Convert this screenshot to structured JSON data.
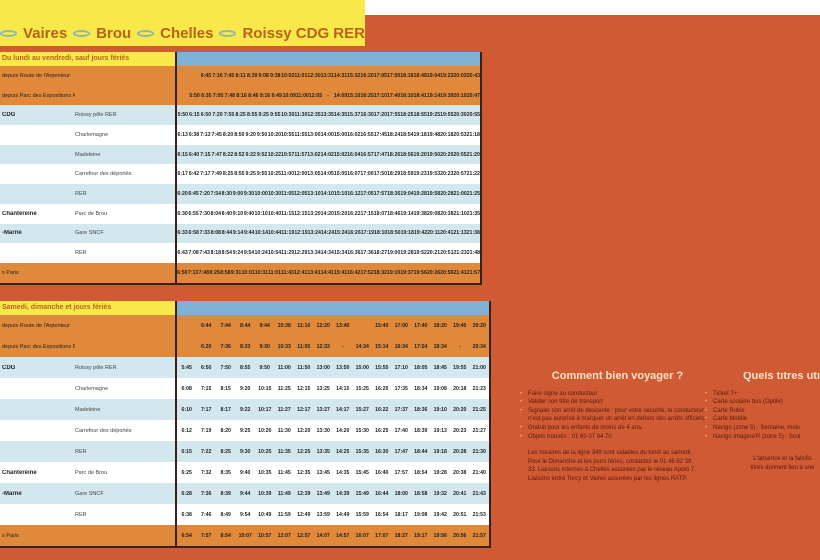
{
  "colors": {
    "background": "#cf5a33",
    "banner": "#f8e84a",
    "orange_row": "#e0893b",
    "blue_row": "#d3e7ee",
    "header_band": "#7fb0d6"
  },
  "title": {
    "stops": [
      "Vaires",
      "Brou",
      "Chelles",
      "Roissy CDG RER"
    ],
    "separator_icon": "double-arrow-icon"
  },
  "weekday": {
    "header": "Du lundi au vendredi, sauf jours fériés",
    "rows": [
      {
        "c1": "depuis Route de l'Arpenteur",
        "c2": "",
        "style": "o",
        "times": [
          "",
          "",
          "6:45",
          "7:16",
          "7:45",
          "8:11",
          "8:39",
          "9:08",
          "9:38",
          "10:02",
          "11:01",
          "12:30",
          "13:31",
          "14:31",
          "15:32",
          "16:20",
          "17:05",
          "17:50",
          "18:18",
          "18:48",
          "19:04",
          "19:23",
          "20:03",
          "20:43"
        ]
      },
      {
        "c1": "depuis Parc des Expositions RER",
        "c2": "",
        "style": "o",
        "times": [
          "",
          "5:50",
          "6:35",
          "7:05",
          "7:48",
          "8:16",
          "8:46",
          "9:16",
          "9:49",
          "10:09",
          "11:00",
          "12:05",
          "-",
          "14:09",
          "15:10",
          "16:25",
          "17:10",
          "17:40",
          "18:10",
          "18:41",
          "19:14",
          "19:39",
          "20:10",
          "20:47"
        ]
      },
      {
        "c1": "CDG",
        "bold": true,
        "c2": "Roissy pôle RER",
        "style": "b",
        "times": [
          "5:50",
          "6:15",
          "6:50",
          "7:20",
          "7:55",
          "8:25",
          "8:55",
          "9:25",
          "9:55",
          "10:30",
          "11:30",
          "12:35",
          "13:35",
          "14:35",
          "15:37",
          "16:30",
          "17:20",
          "17:55",
          "18:25",
          "18:55",
          "19:25",
          "19:55",
          "20:30",
          "20:55"
        ]
      },
      {
        "c1": "",
        "c2": "Charlemagne",
        "style": "w",
        "times": [
          "6:13",
          "6:38",
          "7:13",
          "7:45",
          "8:20",
          "8:50",
          "9:20",
          "9:50",
          "10:20",
          "10:55",
          "11:55",
          "13:00",
          "14:00",
          "15:00",
          "16:02",
          "16:55",
          "17:45",
          "18:24",
          "18:54",
          "19:18",
          "19:48",
          "20:18",
          "20:53",
          "21:18"
        ]
      },
      {
        "c1": "",
        "c2": "Madeleine",
        "style": "b",
        "times": [
          "6:15",
          "6:40",
          "7:15",
          "7:47",
          "8:22",
          "8:52",
          "9:22",
          "9:52",
          "10:22",
          "10:57",
          "11:57",
          "13:02",
          "14:02",
          "15:02",
          "16:04",
          "16:57",
          "17:47",
          "18:26",
          "18:56",
          "19:20",
          "19:50",
          "20:20",
          "20:55",
          "21:20"
        ]
      },
      {
        "c1": "",
        "c2": "Carrefour des déportés",
        "style": "w",
        "times": [
          "6:17",
          "6:42",
          "7:17",
          "7:49",
          "8:25",
          "8:55",
          "9:25",
          "9:55",
          "10:25",
          "11:00",
          "12:00",
          "13:05",
          "14:05",
          "15:05",
          "16:07",
          "17:00",
          "17:50",
          "18:29",
          "18:59",
          "19:23",
          "19:53",
          "20:23",
          "20:57",
          "21:22"
        ]
      },
      {
        "c1": "",
        "c2": "RER",
        "style": "b",
        "times": [
          "6:20",
          "6:45",
          "7:20",
          "7:54",
          "8:30",
          "9:00",
          "9:30",
          "10:00",
          "10:30",
          "11:05",
          "12:05",
          "13:10",
          "14:10",
          "15:10",
          "16:12",
          "17:05",
          "17:57",
          "18:36",
          "19:04",
          "19:28",
          "19:58",
          "20:28",
          "21:00",
          "21:25"
        ]
      },
      {
        "c1": "Chantereine",
        "bold": true,
        "c2": "Parc de Brou",
        "style": "w",
        "times": [
          "6:30",
          "6:55",
          "7:30",
          "8:04",
          "8:40",
          "9:10",
          "9:40",
          "10:10",
          "10:40",
          "11:15",
          "12:15",
          "13:20",
          "14:20",
          "15:20",
          "16:22",
          "17:15",
          "18:07",
          "18:46",
          "19:14",
          "19:38",
          "20:08",
          "20:38",
          "21:10",
          "21:35"
        ]
      },
      {
        "c1": "-Marne",
        "bold": true,
        "c2": "Gare SNCF",
        "style": "b",
        "times": [
          "6:33",
          "6:58",
          "7:33",
          "8:08",
          "8:44",
          "9:14",
          "9:44",
          "10:14",
          "10:44",
          "11:19",
          "12:19",
          "13:24",
          "14:24",
          "15:24",
          "16:26",
          "17:19",
          "18:10",
          "18:50",
          "19:18",
          "19:42",
          "20:11",
          "20:41",
          "21:13",
          "21:38"
        ]
      },
      {
        "c1": "",
        "c2": "RER",
        "style": "w",
        "times": [
          "6:43",
          "7:08",
          "7:43",
          "8:18",
          "8:54",
          "9:24",
          "9:54",
          "10:24",
          "10:54",
          "11:29",
          "12:29",
          "13:34",
          "14:34",
          "15:34",
          "16:36",
          "17:36",
          "18:27",
          "19:00",
          "19:28",
          "19:52",
          "20:21",
          "20:51",
          "21:23",
          "21:48"
        ]
      },
      {
        "c1": "s Paris",
        "c2": "",
        "style": "o",
        "times": [
          "6:50",
          "7:13",
          "7:48",
          "8:25",
          "8:58",
          "9:31",
          "10:01",
          "10:31",
          "11:01",
          "11:43",
          "12:41",
          "13:41",
          "14:41",
          "15:41",
          "16:42",
          "17:52",
          "18:32",
          "19:10",
          "19:37",
          "19:56",
          "20:26",
          "20:56",
          "21:41",
          "21:57"
        ]
      }
    ]
  },
  "weekend": {
    "header": "Samedi, dimanche et jours fériés",
    "rows": [
      {
        "c1": "depuis Route de l'Arpenteur",
        "c2": "",
        "style": "o",
        "times": [
          "",
          "6:44",
          "7:44",
          "8:44",
          "9:44",
          "10:38",
          "11:10",
          "12:20",
          "13:40",
          "",
          "15:40",
          "17:00",
          "17:40",
          "18:20",
          "19:40",
          "20:20"
        ]
      },
      {
        "c1": "depuis Parc des Expositions RER",
        "c2": "",
        "style": "o",
        "times": [
          "",
          "6:20",
          "7:36",
          "8:33",
          "9:30",
          "10:33",
          "11:05",
          "12:33",
          "-",
          "14:34",
          "15:14",
          "16:34",
          "17:54",
          "18:34",
          "-",
          "20:34"
        ]
      },
      {
        "c1": "CDG",
        "bold": true,
        "c2": "Roissy pôle RER",
        "style": "b",
        "times": [
          "5:45",
          "6:50",
          "7:50",
          "8:55",
          "9:50",
          "11:00",
          "11:50",
          "13:00",
          "13:50",
          "15:00",
          "15:55",
          "17:10",
          "18:05",
          "18:45",
          "19:55",
          "21:00"
        ]
      },
      {
        "c1": "",
        "c2": "Charlemagne",
        "style": "w",
        "times": [
          "6:08",
          "7:15",
          "8:15",
          "9:20",
          "10:15",
          "11:25",
          "12:15",
          "13:25",
          "14:15",
          "15:25",
          "16:20",
          "17:35",
          "18:34",
          "19:08",
          "20:18",
          "21:23"
        ]
      },
      {
        "c1": "",
        "c2": "Madeleine",
        "style": "b",
        "times": [
          "6:10",
          "7:17",
          "8:17",
          "9:22",
          "10:17",
          "11:27",
          "12:17",
          "13:27",
          "14:17",
          "15:27",
          "16:22",
          "17:37",
          "18:36",
          "19:10",
          "20:20",
          "21:25"
        ]
      },
      {
        "c1": "",
        "c2": "Carrefour des déportés",
        "style": "w",
        "times": [
          "6:12",
          "7:19",
          "8:20",
          "9:25",
          "10:20",
          "11:30",
          "12:20",
          "13:30",
          "14:20",
          "15:30",
          "16:25",
          "17:40",
          "18:39",
          "19:13",
          "20:23",
          "21:27"
        ]
      },
      {
        "c1": "",
        "c2": "RER",
        "style": "b",
        "times": [
          "6:15",
          "7:22",
          "8:25",
          "9:30",
          "10:25",
          "11:35",
          "12:25",
          "13:35",
          "14:25",
          "15:35",
          "16:30",
          "17:47",
          "18:44",
          "19:18",
          "20:28",
          "21:30"
        ]
      },
      {
        "c1": "Chantereine",
        "bold": true,
        "c2": "Parc de Brou",
        "style": "w",
        "times": [
          "6:25",
          "7:32",
          "8:35",
          "9:40",
          "10:35",
          "11:45",
          "12:35",
          "13:45",
          "14:35",
          "15:45",
          "16:40",
          "17:57",
          "18:54",
          "19:28",
          "20:38",
          "21:40"
        ]
      },
      {
        "c1": "-Marne",
        "bold": true,
        "c2": "Gare SNCF",
        "style": "b",
        "times": [
          "6:28",
          "7:36",
          "8:39",
          "9:44",
          "10:39",
          "11:49",
          "12:39",
          "13:49",
          "14:39",
          "15:49",
          "16:44",
          "18:00",
          "18:58",
          "19:32",
          "20:41",
          "21:43"
        ]
      },
      {
        "c1": "",
        "c2": "RER",
        "style": "w",
        "times": [
          "6:38",
          "7:46",
          "8:49",
          "9:54",
          "10:49",
          "11:59",
          "12:49",
          "13:59",
          "14:49",
          "15:59",
          "16:54",
          "18:17",
          "19:08",
          "19:42",
          "20:51",
          "21:53"
        ]
      },
      {
        "c1": "s Paris",
        "c2": "",
        "style": "o",
        "times": [
          "6:54",
          "7:57",
          "8:54",
          "10:07",
          "10:57",
          "12:07",
          "12:57",
          "14:07",
          "14:57",
          "16:07",
          "17:07",
          "18:27",
          "19:17",
          "19:56",
          "20:56",
          "21:57"
        ]
      }
    ]
  },
  "travel": {
    "title": "Comment bien voyager ?",
    "items": [
      "Faire signe au conducteur",
      "Valider son titre de transport",
      "Signaler son arrêt de descente : pour votre sécurité, le conducteur n'est pas autorisé à marquer un arrêt en dehors des arrêts officiels.",
      "Gratuit pour les enfants de moins de 4 ans.",
      "Objets trouvés : 01 60 07 94 70"
    ],
    "note": "Les horaires de la ligne 349 sont valables du lundi au samedi. Pour le Dimanche et les jours fériés, contactez le 01 46 62 38 33. Liaisons internes à Chelles assurées par le réseau Apolo 7. Liaisons entre Torcy et Vaires assurées par les lignes RATP."
  },
  "tickets": {
    "title": "Quels titres uti",
    "items": [
      "Ticket T+",
      "Carte scolaire bus (Optile)",
      "Carte Rubis",
      "Carte Mobile",
      "Navigo (zone 5) : Semaine, mois",
      "Navigo Imagine'R (zone 5) : Scol"
    ],
    "warning": [
      "L'absence et la falsific",
      "titres donnent lieu à une"
    ]
  }
}
